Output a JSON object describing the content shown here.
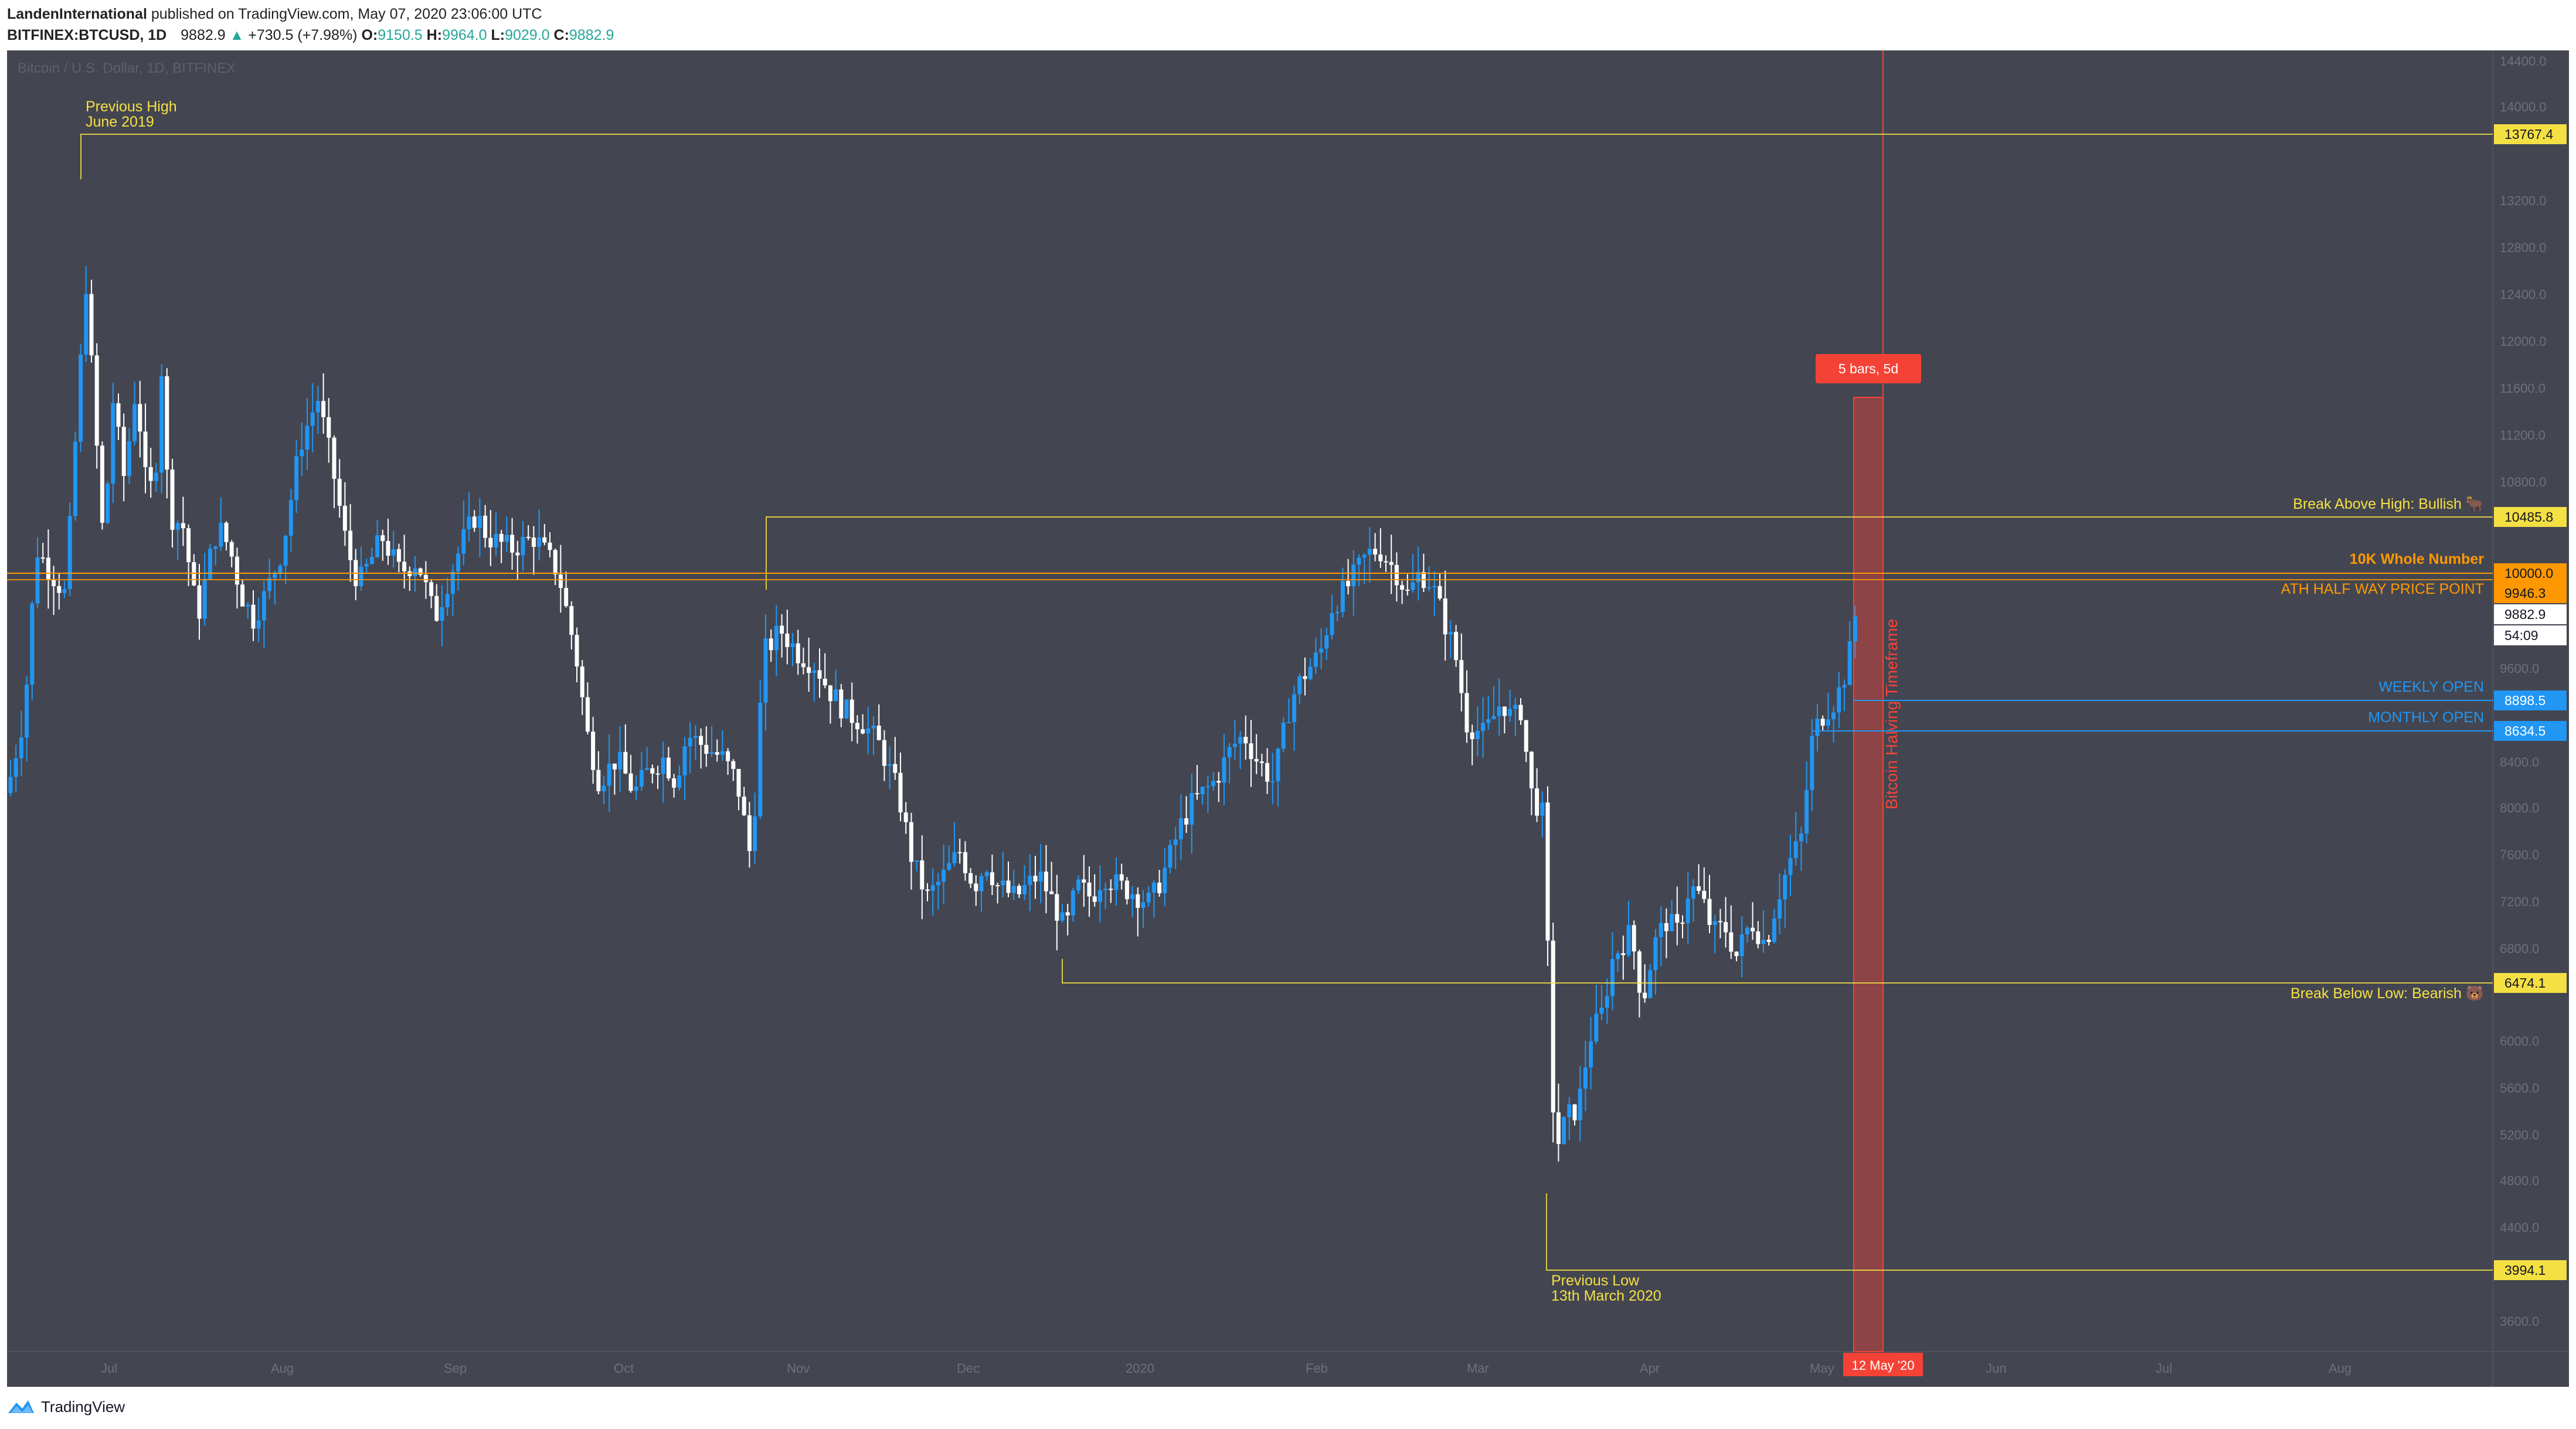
{
  "header": {
    "author": "LandenInternational",
    "published_text": "published on TradingView.com, May 07, 2020 23:06:00 UTC",
    "symbol": "BITFINEX:BTCUSD, 1D",
    "last_price": "9882.9",
    "change": "+730.5 (+7.98%)",
    "open_label": "O:",
    "open": "9150.5",
    "high_label": "H:",
    "high": "9964.0",
    "low_label": "L:",
    "low": "9029.0",
    "close_label": "C:",
    "close": "9882.9"
  },
  "watermark": "Bitcoin / U.S. Dollar, 1D, BITFINEX",
  "price_axis": {
    "ticks": [
      "14400.0",
      "14000.0",
      "13200.0",
      "12800.0",
      "12400.0",
      "12000.0",
      "11600.0",
      "11200.0",
      "10800.0",
      "9600.0",
      "8400.0",
      "8000.0",
      "7600.0",
      "7200.0",
      "6800.0",
      "6000.0",
      "5600.0",
      "5200.0",
      "4800.0",
      "4400.0",
      "3600.0"
    ],
    "badges": [
      {
        "label": "13767.4",
        "bg": "#f5e043",
        "fg": "#131722"
      },
      {
        "label": "10485.8",
        "bg": "#f5e043",
        "fg": "#131722"
      },
      {
        "label": "10000.0",
        "bg": "#ff9800",
        "fg": "#131722"
      },
      {
        "label": "9946.3",
        "bg": "#ff9800",
        "fg": "#131722"
      },
      {
        "label": "9882.9",
        "bg": "#ffffff",
        "fg": "#131722"
      },
      {
        "label": "54:09",
        "bg": "#ffffff",
        "fg": "#131722"
      },
      {
        "label": "8898.5",
        "bg": "#2196f3",
        "fg": "#ffffff"
      },
      {
        "label": "8634.5",
        "bg": "#2196f3",
        "fg": "#ffffff"
      },
      {
        "label": "6474.1",
        "bg": "#f5e043",
        "fg": "#131722"
      },
      {
        "label": "3994.1",
        "bg": "#f5e043",
        "fg": "#131722"
      }
    ]
  },
  "time_axis": {
    "ticks": [
      "Jul",
      "Aug",
      "Sep",
      "Oct",
      "Nov",
      "Dec",
      "2020",
      "Feb",
      "Mar",
      "Apr",
      "May",
      "Jun",
      "Jul",
      "Aug"
    ],
    "badge": "12 May '20"
  },
  "annotations": {
    "previous_high_line1": "Previous High",
    "previous_high_line2": "June 2019",
    "break_above": "Break Above High: Bullish 🐂",
    "ten_k": "10K Whole Number",
    "ath_half": "ATH HALF WAY PRICE POINT",
    "weekly_open": "WEEKLY OPEN",
    "monthly_open": "MONTHLY OPEN",
    "break_below": "Break Below Low: Bearish 🐻",
    "previous_low_line1": "Previous Low",
    "previous_low_line2": "13th March 2020",
    "halving": "Bitcoin Halving Timeframe",
    "range_badge": "5 bars, 5d"
  },
  "colors": {
    "background": "#434651",
    "bull": "#2196f3",
    "bear": "#ffffff",
    "yellow": "#f5e043",
    "orange": "#ff9800",
    "blue": "#2196f3",
    "red": "#f44336"
  },
  "footer": {
    "brand": "TradingView"
  }
}
